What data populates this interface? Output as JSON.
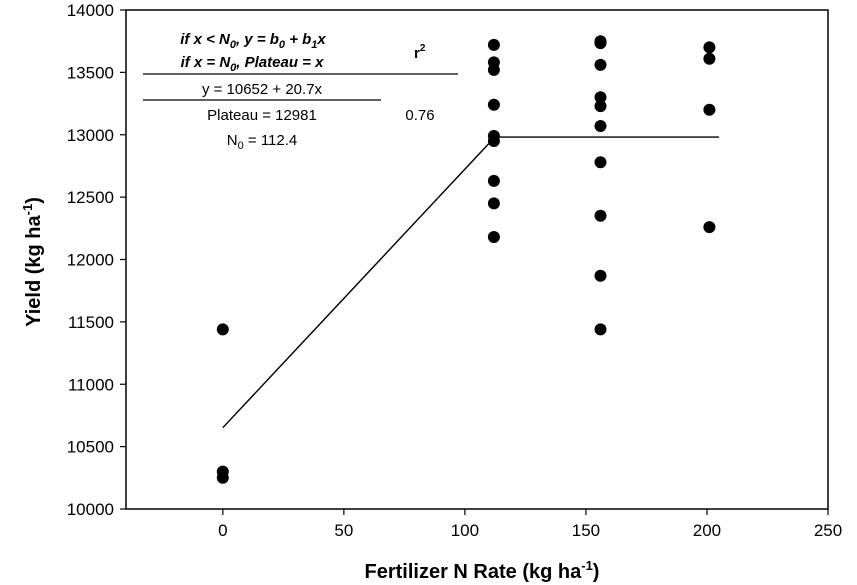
{
  "chart_data": {
    "type": "scatter",
    "title": "",
    "xlabel": {
      "base": "Fertilizer N Rate (kg ha",
      "sup": "-1",
      "close": ")"
    },
    "ylabel": {
      "base": "Yield (kg ha",
      "sup": "-1",
      "close": ")"
    },
    "xlim": [
      -40,
      250
    ],
    "ylim": [
      10000,
      14000
    ],
    "xticks": [
      0,
      50,
      100,
      150,
      200,
      250
    ],
    "yticks": [
      10000,
      10500,
      11000,
      11500,
      12000,
      12500,
      13000,
      13500,
      14000
    ],
    "grid": false,
    "points": [
      {
        "x": 0,
        "y": 11440
      },
      {
        "x": 0,
        "y": 10300
      },
      {
        "x": 0,
        "y": 10250
      },
      {
        "x": 112,
        "y": 13720
      },
      {
        "x": 112,
        "y": 13580
      },
      {
        "x": 112,
        "y": 13520
      },
      {
        "x": 112,
        "y": 13240
      },
      {
        "x": 112,
        "y": 12990
      },
      {
        "x": 112,
        "y": 12950
      },
      {
        "x": 112,
        "y": 12630
      },
      {
        "x": 112,
        "y": 12450
      },
      {
        "x": 112,
        "y": 12180
      },
      {
        "x": 156,
        "y": 13750
      },
      {
        "x": 156,
        "y": 13735
      },
      {
        "x": 156,
        "y": 13560
      },
      {
        "x": 156,
        "y": 13300
      },
      {
        "x": 156,
        "y": 13230
      },
      {
        "x": 156,
        "y": 13070
      },
      {
        "x": 156,
        "y": 12780
      },
      {
        "x": 156,
        "y": 12350
      },
      {
        "x": 156,
        "y": 11870
      },
      {
        "x": 156,
        "y": 11440
      },
      {
        "x": 201,
        "y": 13700
      },
      {
        "x": 201,
        "y": 13610
      },
      {
        "x": 201,
        "y": 13200
      },
      {
        "x": 201,
        "y": 12260
      }
    ],
    "fit_line": [
      {
        "x": 0,
        "y": 10652
      },
      {
        "x": 112.4,
        "y": 12981
      },
      {
        "x": 205,
        "y": 12981
      }
    ],
    "annotation": {
      "line1": "if x < N",
      "line1_sub": "0",
      "line1_rest": ", y = b",
      "line1_sub2": "0",
      "line1_rest2": " + b",
      "line1_sub3": "1",
      "line1_end": "x",
      "line2": "if x = N",
      "line2_sub": "0",
      "line2_rest": ", Plateau = x",
      "r2_label": "r",
      "r2_sup": "2",
      "equation": "y = 10652 + 20.7x",
      "plateau": "Plateau = 12981",
      "r2_value": "0.76",
      "n0_base": "N",
      "n0_sub": "0",
      "n0_rest": " = 112.4"
    }
  }
}
